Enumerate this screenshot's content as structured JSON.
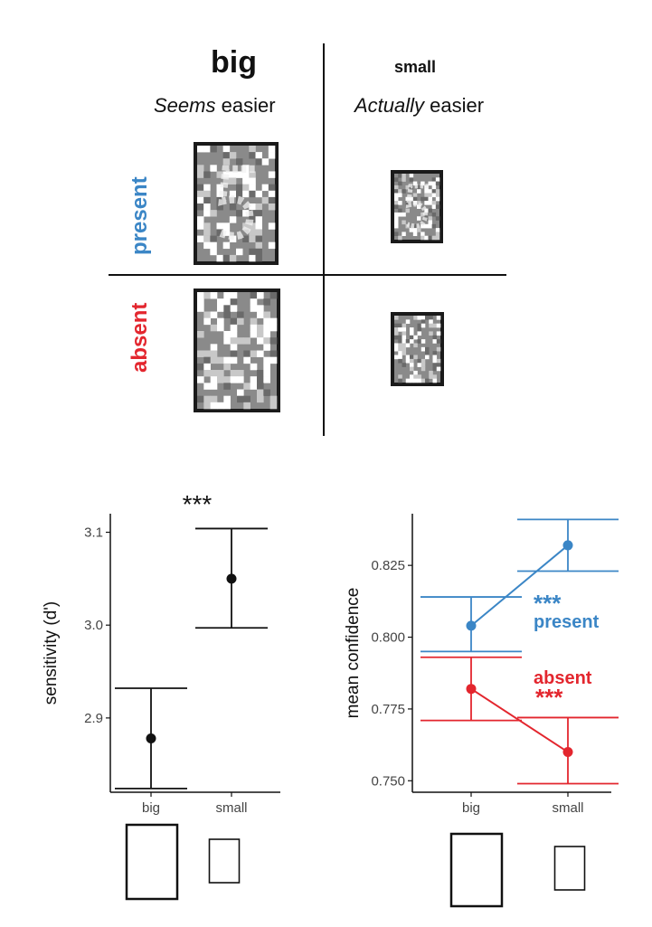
{
  "figure": {
    "col_big": "big",
    "col_small": "small",
    "big_note_em": "Seems",
    "big_note_rest": " easier",
    "small_note_em": "Actually",
    "small_note_rest": " easier",
    "row_present": "present",
    "row_absent": "absent"
  },
  "colors": {
    "present": "#3b86c6",
    "absent": "#e3262e",
    "point": "#111111",
    "stimulus_bg": "#8a8a8a"
  },
  "chart_data": [
    {
      "type": "scatter",
      "title": "",
      "xlabel": "",
      "ylabel": "sensitivity (d')",
      "categories": [
        "big",
        "small"
      ],
      "ylim": [
        2.82,
        3.12
      ],
      "yticks": [
        "2.9",
        "3.0",
        "3.1"
      ],
      "ytick_values": [
        2.9,
        3.0,
        3.1
      ],
      "series": [
        {
          "values": [
            2.878,
            3.05
          ],
          "ci_low": [
            2.824,
            2.997
          ],
          "ci_high": [
            2.932,
            3.104
          ]
        }
      ],
      "annotations": [
        "***"
      ]
    },
    {
      "type": "line",
      "title": "",
      "xlabel": "",
      "ylabel": "mean confidence",
      "categories": [
        "big",
        "small"
      ],
      "ylim": [
        0.746,
        0.843
      ],
      "yticks": [
        "0.750",
        "0.775",
        "0.800",
        "0.825"
      ],
      "ytick_values": [
        0.75,
        0.775,
        0.8,
        0.825
      ],
      "series": [
        {
          "name": "present",
          "values": [
            0.804,
            0.832
          ],
          "ci_low": [
            0.795,
            0.823
          ],
          "ci_high": [
            0.814,
            0.841
          ],
          "sig": "***"
        },
        {
          "name": "absent",
          "values": [
            0.782,
            0.76
          ],
          "ci_low": [
            0.771,
            0.749
          ],
          "ci_high": [
            0.793,
            0.772
          ],
          "sig": "***"
        }
      ]
    }
  ]
}
